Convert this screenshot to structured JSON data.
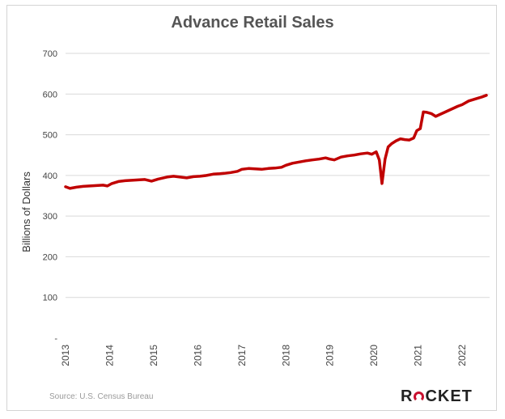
{
  "brand": {
    "pre": "R",
    "post": "CKET",
    "o_letter": "O",
    "accent": "#c8102e"
  },
  "source": "Source: U.S. Census Bureau",
  "chart_data": {
    "type": "line",
    "title": "Advance Retail Sales",
    "ylabel": "Billions of Dollars",
    "xlabel": "",
    "ylim": [
      0,
      700
    ],
    "xlim": [
      2013.0,
      2022.55
    ],
    "y_ticks": [
      {
        "value": 0,
        "label": "-"
      },
      {
        "value": 100,
        "label": "100"
      },
      {
        "value": 200,
        "label": "200"
      },
      {
        "value": 300,
        "label": "300"
      },
      {
        "value": 400,
        "label": "400"
      },
      {
        "value": 500,
        "label": "500"
      },
      {
        "value": 600,
        "label": "600"
      },
      {
        "value": 700,
        "label": "700"
      }
    ],
    "x_ticks": [
      "2013",
      "2014",
      "2015",
      "2016",
      "2017",
      "2018",
      "2019",
      "2020",
      "2021",
      "2022"
    ],
    "grid": "horizontal",
    "line_color": "#c00000",
    "series": [
      {
        "x": [
          2013.0,
          2013.1,
          2013.25,
          2013.4,
          2013.55,
          2013.7,
          2013.85,
          2013.95,
          2014.05,
          2014.2,
          2014.35,
          2014.5,
          2014.65,
          2014.8,
          2014.95,
          2015.1,
          2015.3,
          2015.45,
          2015.6,
          2015.75,
          2015.9,
          2016.05,
          2016.2,
          2016.35,
          2016.5,
          2016.6,
          2016.75,
          2016.9,
          2017.0,
          2017.15,
          2017.3,
          2017.45,
          2017.6,
          2017.75,
          2017.9,
          2018.0,
          2018.15,
          2018.3,
          2018.45,
          2018.6,
          2018.75,
          2018.9,
          2019.0,
          2019.1,
          2019.25,
          2019.4,
          2019.55,
          2019.7,
          2019.85,
          2019.95,
          2020.05,
          2020.12,
          2020.18,
          2020.25,
          2020.32,
          2020.4,
          2020.5,
          2020.6,
          2020.7,
          2020.8,
          2020.9,
          2020.97,
          2021.05,
          2021.12,
          2021.2,
          2021.3,
          2021.4,
          2021.5,
          2021.6,
          2021.7,
          2021.8,
          2021.9,
          2022.0,
          2022.15,
          2022.3,
          2022.45,
          2022.55
        ],
        "y": [
          372,
          368,
          371,
          373,
          374,
          375,
          376,
          374,
          380,
          385,
          387,
          388,
          389,
          390,
          386,
          391,
          396,
          398,
          396,
          394,
          397,
          398,
          400,
          403,
          404,
          405,
          407,
          410,
          415,
          417,
          416,
          415,
          417,
          418,
          420,
          425,
          430,
          433,
          436,
          438,
          440,
          443,
          440,
          438,
          445,
          448,
          450,
          453,
          455,
          452,
          458,
          438,
          380,
          440,
          470,
          478,
          485,
          490,
          488,
          487,
          492,
          510,
          515,
          556,
          555,
          552,
          545,
          550,
          555,
          560,
          565,
          570,
          574,
          583,
          588,
          593,
          597
        ]
      }
    ]
  }
}
